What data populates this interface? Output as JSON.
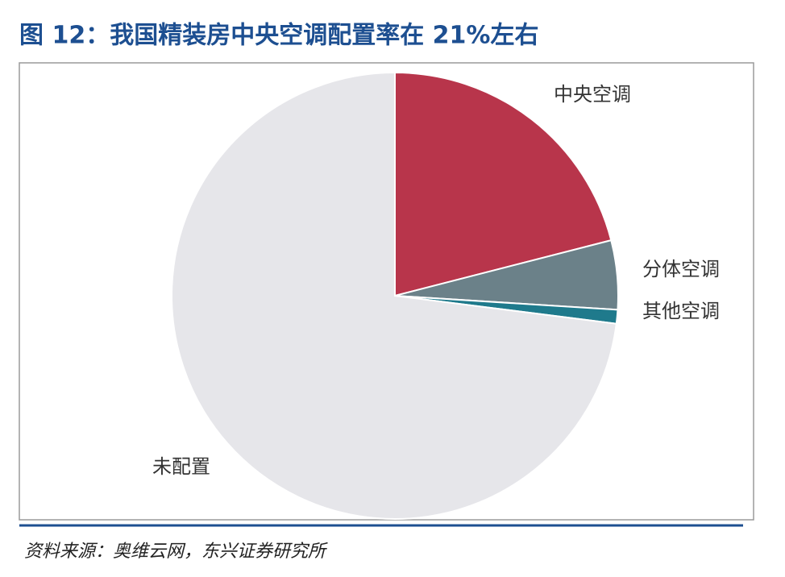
{
  "chart_data": {
    "type": "pie",
    "title": "图 12：我国精装房中央空调配置率在 21%左右",
    "categories": [
      "中央空调",
      "分体空调",
      "其他空调",
      "未配置"
    ],
    "values": [
      21,
      5,
      1,
      73
    ],
    "colors": [
      "#b8354b",
      "#6b8189",
      "#1f7a8c",
      "#e6e6ea"
    ],
    "source": "资料来源：奥维云网，东兴证券研究所"
  }
}
